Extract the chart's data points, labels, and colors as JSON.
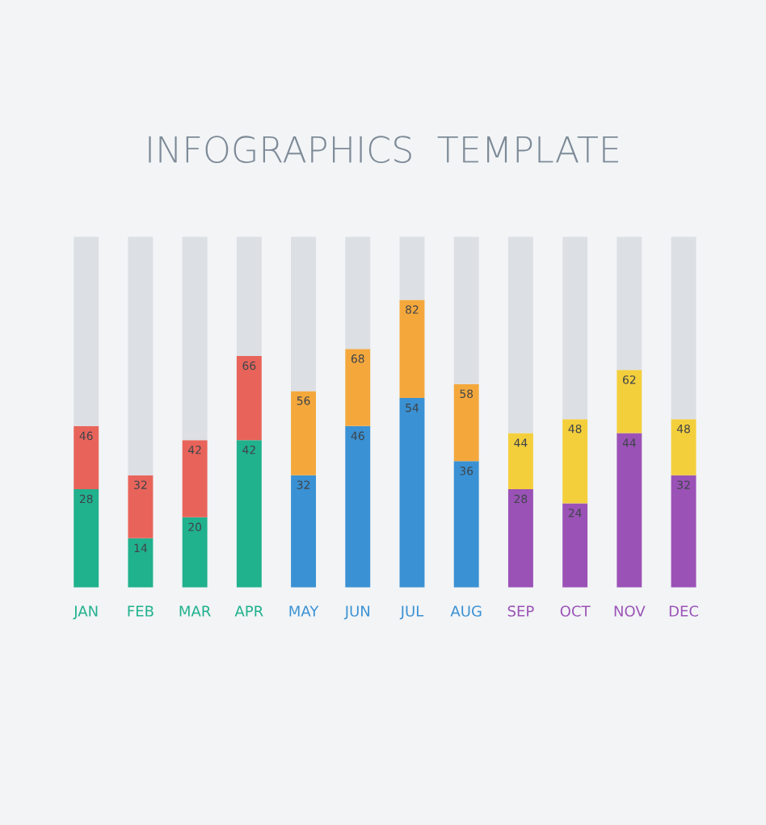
{
  "chart_data": {
    "type": "bar",
    "title": "INFOGRAPHICS  TEMPLATE",
    "stacked": true,
    "categories": [
      "JAN",
      "FEB",
      "MAR",
      "APR",
      "MAY",
      "JUN",
      "JUL",
      "AUG",
      "SEP",
      "OCT",
      "NOV",
      "DEC"
    ],
    "ylim": [
      0,
      100
    ],
    "tick_labels": "x",
    "grid": false,
    "legend": false,
    "series": [
      {
        "colors": [
          "#20b18d",
          "#20b18d",
          "#20b18d",
          "#20b18d",
          "#3a91d3",
          "#3a91d3",
          "#3a91d3",
          "#3a91d3",
          "#9b52b6",
          "#9b52b6",
          "#9b52b6",
          "#9b52b6"
        ],
        "values": [
          28,
          14,
          20,
          42,
          32,
          46,
          54,
          36,
          28,
          24,
          44,
          32
        ],
        "value_labels": [
          "28",
          "14",
          "20",
          "42",
          "32",
          "46",
          "54",
          "36",
          "28",
          "24",
          "44",
          "32"
        ]
      },
      {
        "colors": [
          "#e8645a",
          "#e8645a",
          "#e8645a",
          "#e8645a",
          "#f4a83c",
          "#f4a83c",
          "#f4a83c",
          "#f4a83c",
          "#f4cf3c",
          "#f4cf3c",
          "#f4cf3c",
          "#f4cf3c"
        ],
        "values": [
          18,
          18,
          22,
          24,
          24,
          22,
          28,
          22,
          16,
          24,
          18,
          16
        ]
      },
      {
        "color": "#dcdfe4",
        "values": [
          54,
          68,
          58,
          34,
          44,
          32,
          18,
          42,
          56,
          52,
          38,
          52
        ]
      }
    ],
    "annotations": [
      {
        "text": "46",
        "x": "JAN",
        "y": 46
      },
      {
        "text": "32",
        "x": "FEB",
        "y": 32
      },
      {
        "text": "42",
        "x": "MAR",
        "y": 42
      },
      {
        "text": "66",
        "x": "APR",
        "y": 66
      },
      {
        "text": "56",
        "x": "MAY",
        "y": 56
      },
      {
        "text": "68",
        "x": "JUN",
        "y": 68
      },
      {
        "text": "82",
        "x": "JUL",
        "y": 82
      },
      {
        "text": "58",
        "x": "AUG",
        "y": 58
      },
      {
        "text": "44",
        "x": "SEP",
        "y": 44
      },
      {
        "text": "48",
        "x": "OCT",
        "y": 48
      },
      {
        "text": "62",
        "x": "NOV",
        "y": 62
      },
      {
        "text": "48",
        "x": "DEC",
        "y": 48
      }
    ]
  }
}
